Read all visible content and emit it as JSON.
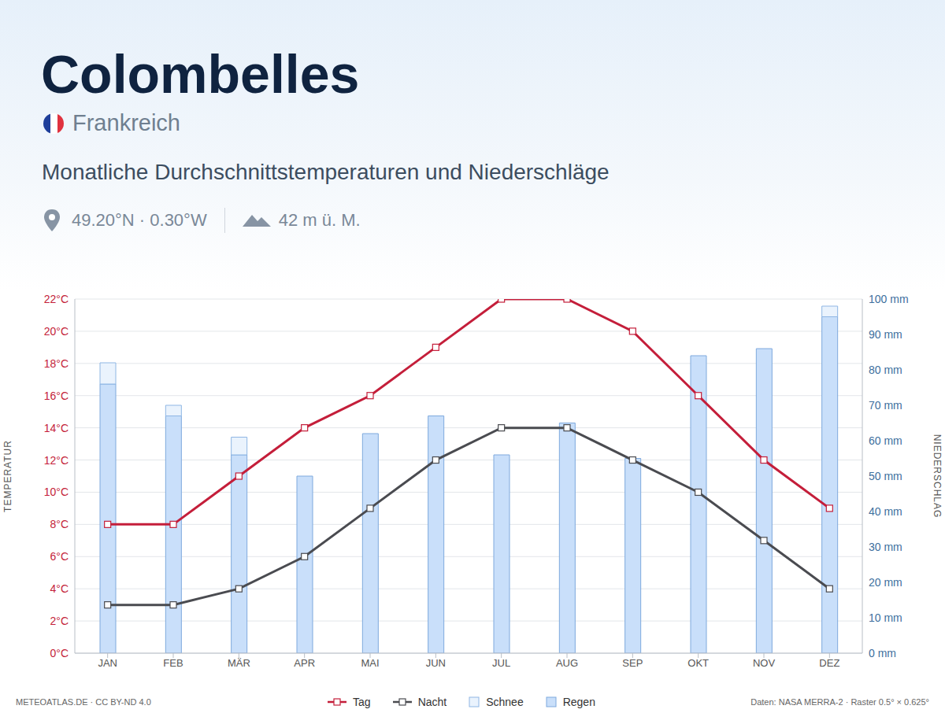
{
  "chart_data": {
    "type": "combo",
    "title": "Colombelles",
    "country": "Frankreich",
    "subtitle": "Monatliche Durchschnittstemperaturen und Niederschläge",
    "location": "49.20°N · 0.30°W",
    "elevation": "42 m ü. M.",
    "credit": "METEOATLAS.DE · CC BY-ND 4.0",
    "source": "Daten: NASA MERRA-2 · Raster 0.5° × 0.625°",
    "y_label": "TEMPERATUR",
    "y2_label": "NIEDERSCHLAG",
    "categories": [
      "JAN",
      "FEB",
      "MÄR",
      "APR",
      "MAI",
      "JUN",
      "JUL",
      "AUG",
      "SEP",
      "OKT",
      "NOV",
      "DEZ"
    ],
    "ylim": [
      0,
      22
    ],
    "yticks": [
      {
        "value": 0,
        "label": "0°C"
      },
      {
        "value": 2,
        "label": "2°C"
      },
      {
        "value": 4,
        "label": "4°C"
      },
      {
        "value": 6,
        "label": "6°C"
      },
      {
        "value": 8,
        "label": "8°C"
      },
      {
        "value": 10,
        "label": "10°C"
      },
      {
        "value": 12,
        "label": "12°C"
      },
      {
        "value": 14,
        "label": "14°C"
      },
      {
        "value": 16,
        "label": "16°C"
      },
      {
        "value": 18,
        "label": "18°C"
      },
      {
        "value": 20,
        "label": "20°C"
      },
      {
        "value": 22,
        "label": "22°C"
      }
    ],
    "y2lim": [
      0,
      100
    ],
    "y2ticks": [
      {
        "value": 0,
        "label": "0 mm"
      },
      {
        "value": 10,
        "label": "10 mm"
      },
      {
        "value": 20,
        "label": "20 mm"
      },
      {
        "value": 30,
        "label": "30 mm"
      },
      {
        "value": 40,
        "label": "40 mm"
      },
      {
        "value": 50,
        "label": "50 mm"
      },
      {
        "value": 60,
        "label": "60 mm"
      },
      {
        "value": 70,
        "label": "70 mm"
      },
      {
        "value": 80,
        "label": "80 mm"
      },
      {
        "value": 90,
        "label": "90 mm"
      },
      {
        "value": 100,
        "label": "100 mm"
      }
    ],
    "grid": true,
    "stacked": true,
    "legend": "bottom",
    "series": [
      {
        "name": "Tag",
        "type": "line",
        "color": "#c41e3a",
        "marker": "square",
        "values": [
          8,
          8,
          11,
          14,
          16,
          19,
          22,
          22,
          20,
          16,
          12,
          9
        ]
      },
      {
        "name": "Nacht",
        "type": "line",
        "color": "#4a4b50",
        "marker": "square",
        "values": [
          3,
          3,
          4,
          6,
          9,
          12,
          14,
          14,
          12,
          10,
          7,
          4
        ]
      },
      {
        "name": "Schnee",
        "type": "bar",
        "axis": "y2",
        "color": "#eaf3fd",
        "values": [
          6,
          3,
          5,
          0,
          0,
          0,
          0,
          0,
          0,
          0,
          0,
          3
        ]
      },
      {
        "name": "Regen",
        "type": "bar",
        "axis": "y2",
        "color": "#c9dffa",
        "values": [
          76,
          67,
          56,
          50,
          62,
          67,
          56,
          65,
          55,
          84,
          86,
          95
        ]
      }
    ]
  }
}
